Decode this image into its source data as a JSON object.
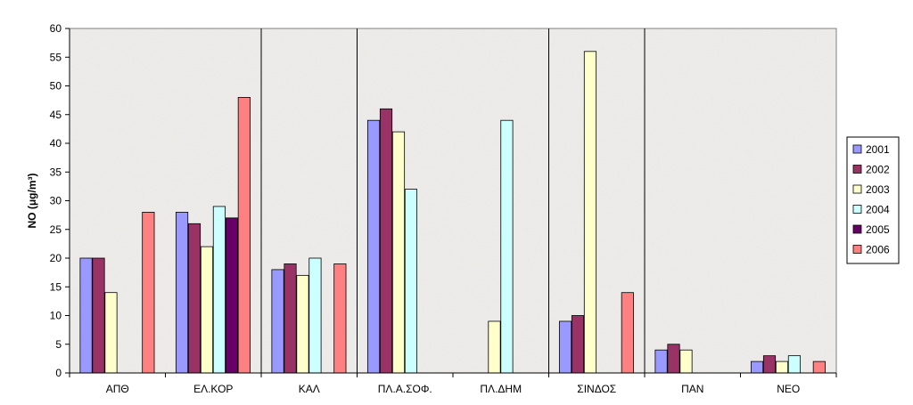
{
  "chart_data": {
    "type": "bar",
    "title": "",
    "xlabel": "",
    "ylabel": "NO (μg/m³)",
    "ylim": [
      0,
      60
    ],
    "ytick_step": 5,
    "grid": false,
    "legend_position": "right",
    "categories": [
      "ΑΠΘ",
      "ΕΛ.ΚΟΡ",
      "ΚΑΛ",
      "ΠΛ.Α.ΣΟΦ.",
      "ΠΛ.ΔΗΜ",
      "ΣΙΝΔΟΣ",
      "ΠΑΝ",
      "ΝΕΟ"
    ],
    "separators_after": [
      1,
      2,
      4,
      5
    ],
    "series": [
      {
        "name": "2001",
        "color": "#9999ff",
        "values": [
          20,
          28,
          18,
          44,
          null,
          9,
          4,
          2
        ]
      },
      {
        "name": "2002",
        "color": "#993366",
        "values": [
          20,
          26,
          19,
          46,
          null,
          10,
          5,
          3
        ]
      },
      {
        "name": "2003",
        "color": "#ffffcc",
        "values": [
          14,
          22,
          17,
          42,
          9,
          56,
          4,
          2
        ]
      },
      {
        "name": "2004",
        "color": "#ccffff",
        "values": [
          null,
          29,
          20,
          32,
          44,
          null,
          null,
          3
        ]
      },
      {
        "name": "2005",
        "color": "#660066",
        "values": [
          null,
          27,
          null,
          null,
          null,
          null,
          null,
          null
        ]
      },
      {
        "name": "2006",
        "color": "#ff8080",
        "values": [
          28,
          48,
          19,
          null,
          null,
          14,
          null,
          2
        ]
      }
    ],
    "legend_labels": [
      "2001",
      "2002",
      "2003",
      "2004",
      "2005",
      "2006"
    ]
  }
}
